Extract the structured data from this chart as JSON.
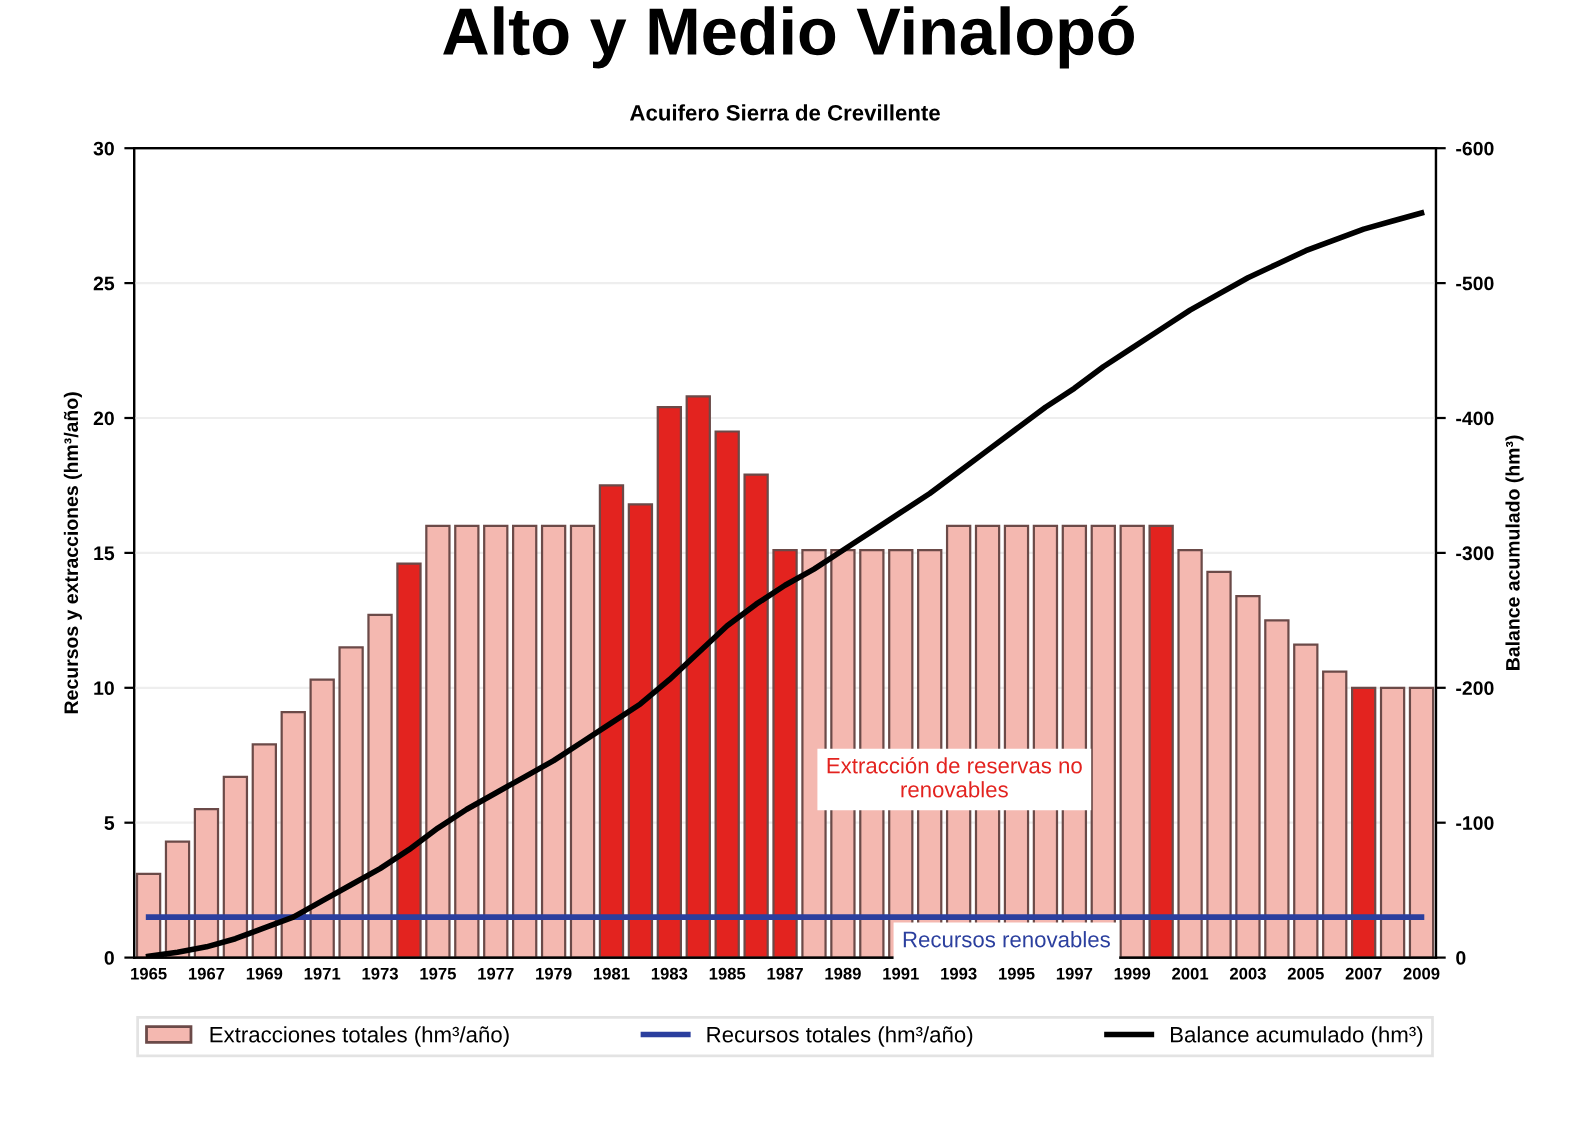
{
  "chart_data": {
    "type": "bar",
    "title": "Alto y Medio Vinalopó",
    "subtitle": "Acuifero Sierra de Crevillente",
    "ylabel": "Recursos y extracciones (hm³/año)",
    "y2label": "Balance acumulado (hm³)",
    "categories": [
      "1965",
      null,
      "1967",
      null,
      "1969",
      null,
      "1971",
      null,
      "1973",
      null,
      "1975",
      null,
      "1977",
      null,
      "1979",
      null,
      "1981",
      null,
      "1983",
      null,
      "1985",
      null,
      "1987",
      null,
      "1989",
      null,
      "1991",
      null,
      "1993",
      null,
      "1995",
      null,
      "1997",
      null,
      "1999",
      null,
      "2001",
      null,
      "2003",
      null,
      "2005",
      null,
      "2007",
      null,
      "2009"
    ],
    "series": [
      {
        "name": "Extracciones totales (hm³/año)",
        "color": "#f4b8b0",
        "colors": [
          "#f4b8b0",
          "#f4b8b0",
          "#f4b8b0",
          "#f4b8b0",
          "#f4b8b0",
          "#f4b8b0",
          "#f4b8b0",
          "#f4b8b0",
          "#f4b8b0",
          "#e3231f",
          "#f4b8b0",
          "#f4b8b0",
          "#f4b8b0",
          "#f4b8b0",
          "#f4b8b0",
          "#f4b8b0",
          "#e3231f",
          "#e3231f",
          "#e3231f",
          "#e3231f",
          "#e3231f",
          "#e3231f",
          "#e3231f",
          "#f4b8b0",
          "#f4b8b0",
          "#f4b8b0",
          "#f4b8b0",
          "#f4b8b0",
          "#f4b8b0",
          "#f4b8b0",
          "#f4b8b0",
          "#f4b8b0",
          "#f4b8b0",
          "#f4b8b0",
          "#f4b8b0",
          "#e3231f",
          "#f4b8b0",
          "#f4b8b0",
          "#f4b8b0",
          "#f4b8b0",
          "#f4b8b0",
          "#f4b8b0",
          "#e3231f",
          "#f4b8b0",
          "#f4b8b0"
        ],
        "values": [
          3.1,
          4.3,
          5.5,
          6.7,
          7.9,
          9.1,
          10.3,
          11.5,
          12.7,
          14.6,
          16,
          16,
          16,
          16,
          16,
          16,
          17.5,
          16.8,
          20.4,
          20.8,
          19.5,
          17.9,
          15.1,
          15.1,
          15.1,
          15.1,
          15.1,
          15.1,
          16,
          16,
          16,
          16,
          16,
          16,
          16,
          16,
          15.1,
          14.3,
          13.4,
          12.5,
          11.6,
          10.6,
          10,
          10,
          10
        ]
      },
      {
        "name": "Recursos totales (hm³/año)",
        "type": "line",
        "color": "#2b3f9e",
        "values": [
          1.5,
          1.5,
          1.5,
          1.5,
          1.5,
          1.5,
          1.5,
          1.5,
          1.5,
          1.5,
          1.5,
          1.5,
          1.5,
          1.5,
          1.5,
          1.5,
          1.5,
          1.5,
          1.5,
          1.5,
          1.5,
          1.5,
          1.5,
          1.5,
          1.5,
          1.5,
          1.5,
          1.5,
          1.5,
          1.5,
          1.5,
          1.5,
          1.5,
          1.5,
          1.5,
          1.5,
          1.5,
          1.5,
          1.5,
          1.5,
          1.5,
          1.5,
          1.5,
          1.5,
          1.5
        ]
      },
      {
        "name": "Balance acumulado (hm³)",
        "type": "line",
        "axis": "y2",
        "color": "#000000",
        "values": [
          -1,
          -4,
          -8,
          -14,
          -22,
          -30,
          -42,
          -54,
          -66,
          -80,
          -96,
          -110,
          -122,
          -134,
          -146,
          -160,
          -174,
          -188,
          -206,
          -226,
          -246,
          -262,
          -276,
          -288,
          -302,
          -316,
          -330,
          -344,
          -360,
          -376,
          -392,
          -408,
          -422,
          -438,
          -452,
          -466,
          -480,
          -492,
          -504,
          -514,
          -524,
          -532,
          -540,
          -546,
          -552
        ]
      }
    ],
    "ylim": [
      0,
      30
    ],
    "yticks": [
      0,
      5,
      10,
      15,
      20,
      25,
      30
    ],
    "y2lim": [
      0,
      -600
    ],
    "y2ticks": [
      0,
      -100,
      -200,
      -300,
      -400,
      -500,
      -600
    ],
    "annotations": [
      "Extracción de reservas no\nrenovables",
      "Recursos renovables"
    ],
    "grid": "y",
    "legend": "bottom"
  }
}
